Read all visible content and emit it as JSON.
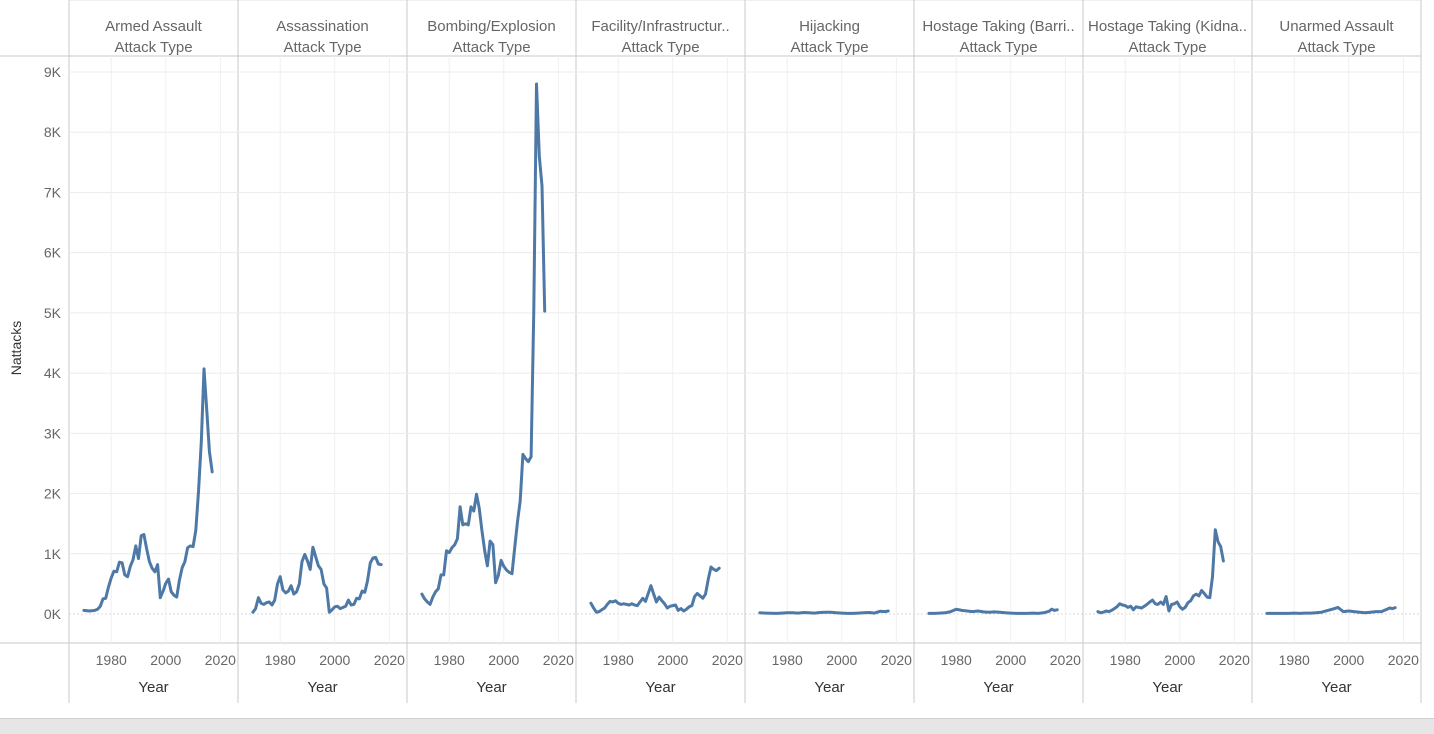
{
  "chart_data": {
    "type": "line",
    "ylabel": "Nattacks",
    "xlabel": "Year",
    "header_sub": "Attack Type",
    "ylim": [
      0,
      9000
    ],
    "xlim": [
      1966,
      2025
    ],
    "y_ticks": [
      0,
      1000,
      2000,
      3000,
      4000,
      5000,
      6000,
      7000,
      8000,
      9000
    ],
    "y_tick_labels": [
      "0K",
      "1K",
      "2K",
      "3K",
      "4K",
      "5K",
      "6K",
      "7K",
      "8K",
      "9K"
    ],
    "x_ticks": [
      1980,
      2000,
      2020
    ],
    "x_tick_labels": [
      "1980",
      "2000",
      "2020"
    ],
    "grid": true,
    "line_color": "#4e79a7",
    "panels": [
      {
        "name": "Armed Assault",
        "x": [
          1970,
          1972,
          1974,
          1975,
          1976,
          1977,
          1978,
          1979,
          1980,
          1981,
          1982,
          1983,
          1984,
          1985,
          1986,
          1987,
          1988,
          1989,
          1990,
          1991,
          1992,
          1993,
          1994,
          1995,
          1996,
          1997,
          1998,
          1999,
          2000,
          2001,
          2002,
          2003,
          2004,
          2005,
          2006,
          2007,
          2008,
          2009,
          2010,
          2011,
          2012,
          2013,
          2014,
          2015,
          2016,
          2017,
          2018,
          2019
        ],
        "y": [
          60,
          50,
          60,
          80,
          130,
          250,
          260,
          450,
          600,
          710,
          700,
          860,
          850,
          650,
          620,
          790,
          900,
          1130,
          920,
          1300,
          1320,
          1080,
          870,
          760,
          700,
          820,
          270,
          380,
          510,
          580,
          370,
          310,
          280,
          560,
          770,
          870,
          1100,
          1130,
          1120,
          1390,
          2030,
          2860,
          4070,
          3400,
          2700,
          2360,
          null,
          null
        ]
      },
      {
        "name": "Assassination",
        "x": [
          1970,
          1971,
          1972,
          1973,
          1974,
          1975,
          1976,
          1977,
          1978,
          1979,
          1980,
          1981,
          1982,
          1983,
          1984,
          1985,
          1986,
          1987,
          1988,
          1989,
          1990,
          1991,
          1992,
          1993,
          1994,
          1995,
          1996,
          1997,
          1998,
          1999,
          2000,
          2001,
          2002,
          2003,
          2004,
          2005,
          2006,
          2007,
          2008,
          2009,
          2010,
          2011,
          2012,
          2013,
          2014,
          2015,
          2016,
          2017,
          2018,
          2019
        ],
        "y": [
          30,
          90,
          270,
          180,
          160,
          190,
          200,
          150,
          230,
          500,
          620,
          400,
          350,
          380,
          470,
          330,
          370,
          500,
          870,
          990,
          880,
          740,
          1110,
          950,
          800,
          740,
          500,
          430,
          30,
          70,
          120,
          130,
          90,
          110,
          130,
          230,
          150,
          160,
          260,
          250,
          380,
          360,
          550,
          850,
          930,
          940,
          830,
          820,
          null,
          null
        ]
      },
      {
        "name": "Bombing/Explosion",
        "x": [
          1970,
          1971,
          1972,
          1973,
          1974,
          1975,
          1976,
          1977,
          1978,
          1979,
          1980,
          1981,
          1982,
          1983,
          1984,
          1985,
          1986,
          1987,
          1988,
          1989,
          1990,
          1991,
          1992,
          1993,
          1994,
          1995,
          1996,
          1997,
          1998,
          1999,
          2000,
          2001,
          2002,
          2003,
          2004,
          2005,
          2006,
          2007,
          2008,
          2009,
          2010,
          2011,
          2012,
          2013,
          2014,
          2015,
          2016,
          2017
        ],
        "y": [
          330,
          250,
          200,
          160,
          280,
          370,
          420,
          650,
          650,
          1050,
          1020,
          1100,
          1150,
          1250,
          1780,
          1480,
          1500,
          1480,
          1780,
          1710,
          1990,
          1760,
          1390,
          1050,
          800,
          1210,
          1150,
          520,
          640,
          890,
          790,
          730,
          690,
          670,
          1100,
          1520,
          1880,
          2650,
          2580,
          2530,
          2610,
          5050,
          8800,
          7600,
          7110,
          5030,
          null,
          null
        ]
      },
      {
        "name": "Facility/Infrastructur..",
        "x": [
          1970,
          1971,
          1972,
          1973,
          1974,
          1975,
          1976,
          1977,
          1978,
          1979,
          1980,
          1981,
          1982,
          1983,
          1984,
          1985,
          1986,
          1987,
          1988,
          1989,
          1990,
          1991,
          1992,
          1993,
          1994,
          1995,
          1996,
          1997,
          1998,
          1999,
          2000,
          2001,
          2002,
          2003,
          2004,
          2005,
          2006,
          2007,
          2008,
          2009,
          2010,
          2011,
          2012,
          2013,
          2014,
          2015,
          2016,
          2017
        ],
        "y": [
          180,
          100,
          30,
          40,
          70,
          100,
          160,
          210,
          200,
          220,
          180,
          160,
          170,
          160,
          150,
          170,
          150,
          140,
          200,
          260,
          210,
          340,
          470,
          330,
          200,
          280,
          220,
          170,
          100,
          130,
          140,
          150,
          60,
          90,
          50,
          80,
          120,
          140,
          290,
          340,
          300,
          260,
          330,
          580,
          780,
          740,
          720,
          760
        ]
      },
      {
        "name": "Hijacking",
        "x": [
          1970,
          1972,
          1974,
          1976,
          1978,
          1980,
          1982,
          1984,
          1986,
          1988,
          1990,
          1992,
          1994,
          1996,
          1998,
          2000,
          2002,
          2004,
          2006,
          2008,
          2010,
          2012,
          2014,
          2016,
          2017
        ],
        "y": [
          20,
          15,
          12,
          10,
          15,
          20,
          22,
          15,
          25,
          20,
          15,
          25,
          30,
          28,
          20,
          15,
          10,
          10,
          15,
          20,
          25,
          15,
          45,
          40,
          50
        ]
      },
      {
        "name": "Hostage Taking (Barri..",
        "x": [
          1970,
          1972,
          1974,
          1976,
          1978,
          1980,
          1982,
          1984,
          1986,
          1988,
          1990,
          1992,
          1994,
          1996,
          1998,
          2000,
          2002,
          2004,
          2006,
          2008,
          2010,
          2012,
          2014,
          2015,
          2016,
          2017
        ],
        "y": [
          10,
          10,
          15,
          20,
          40,
          80,
          60,
          50,
          40,
          50,
          35,
          30,
          35,
          30,
          20,
          15,
          10,
          10,
          10,
          15,
          10,
          20,
          45,
          80,
          60,
          70
        ]
      },
      {
        "name": "Hostage Taking (Kidna..",
        "x": [
          1970,
          1971,
          1972,
          1973,
          1974,
          1975,
          1976,
          1977,
          1978,
          1979,
          1980,
          1981,
          1982,
          1983,
          1984,
          1985,
          1986,
          1987,
          1988,
          1989,
          1990,
          1991,
          1992,
          1993,
          1994,
          1995,
          1996,
          1997,
          1998,
          1999,
          2000,
          2001,
          2002,
          2003,
          2004,
          2005,
          2006,
          2007,
          2008,
          2009,
          2010,
          2011,
          2012,
          2013,
          2014,
          2015,
          2016,
          2017
        ],
        "y": [
          40,
          20,
          30,
          50,
          40,
          60,
          90,
          120,
          170,
          150,
          140,
          110,
          130,
          70,
          120,
          110,
          100,
          130,
          160,
          200,
          230,
          170,
          160,
          200,
          160,
          290,
          50,
          160,
          170,
          200,
          120,
          80,
          110,
          190,
          220,
          300,
          330,
          300,
          390,
          340,
          280,
          270,
          620,
          1400,
          1200,
          1120,
          880,
          null
        ]
      },
      {
        "name": "Unarmed Assault",
        "x": [
          1970,
          1972,
          1974,
          1976,
          1978,
          1980,
          1982,
          1984,
          1986,
          1988,
          1990,
          1992,
          1994,
          1996,
          1998,
          2000,
          2002,
          2004,
          2006,
          2008,
          2010,
          2012,
          2013,
          2014,
          2015,
          2016,
          2017
        ],
        "y": [
          10,
          10,
          10,
          10,
          10,
          15,
          10,
          15,
          15,
          20,
          30,
          55,
          80,
          110,
          40,
          50,
          40,
          30,
          20,
          30,
          40,
          40,
          60,
          80,
          100,
          90,
          105
        ]
      }
    ]
  }
}
